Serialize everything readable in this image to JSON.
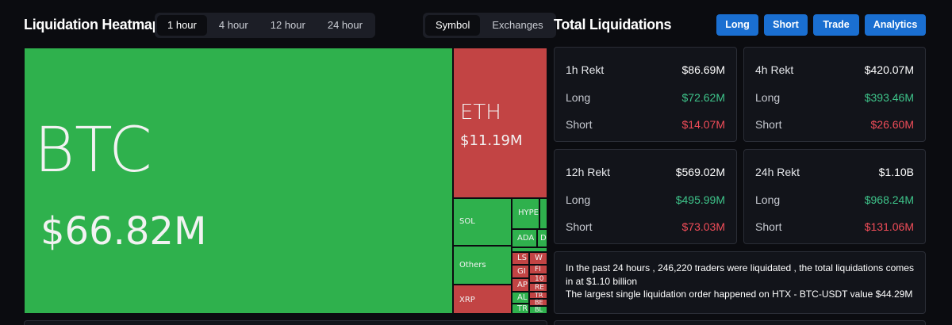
{
  "heatmap": {
    "title": "Liquidation Heatmap",
    "timeframes": [
      "1 hour",
      "4 hour",
      "12 hour",
      "24 hour"
    ],
    "active_timeframe": "1 hour",
    "views": [
      "Symbol",
      "Exchanges"
    ],
    "active_view": "Symbol",
    "tiles": {
      "btc": {
        "symbol": "BTC",
        "value": "$66.82M",
        "direction": "long"
      },
      "eth": {
        "symbol": "ETH",
        "value": "$11.19M",
        "direction": "short"
      },
      "sol": {
        "symbol": "SOL"
      },
      "others": {
        "symbol": "Others"
      },
      "xrp": {
        "symbol": "XRP"
      },
      "hype": {
        "symbol": "HYPE"
      },
      "ada": {
        "symbol": "ADA"
      },
      "d": {
        "symbol": "D"
      },
      "ls": {
        "symbol": "LS"
      },
      "w": {
        "symbol": "W"
      },
      "gi": {
        "symbol": "GI"
      },
      "fi": {
        "symbol": "FI"
      },
      "ten": {
        "symbol": "10"
      },
      "ap": {
        "symbol": "AP"
      },
      "re": {
        "symbol": "RE"
      },
      "al": {
        "symbol": "AL"
      },
      "tr1": {
        "symbol": "TR"
      },
      "be": {
        "symbol": "BE"
      },
      "tr2": {
        "symbol": "TR"
      },
      "bl": {
        "symbol": "BL"
      }
    }
  },
  "totals": {
    "title": "Total Liquidations",
    "buttons": [
      "Long",
      "Short",
      "Trade",
      "Analytics"
    ],
    "cards": [
      {
        "label": "1h Rekt",
        "total": "$86.69M",
        "long_label": "Long",
        "long": "$72.62M",
        "short_label": "Short",
        "short": "$14.07M"
      },
      {
        "label": "4h Rekt",
        "total": "$420.07M",
        "long_label": "Long",
        "long": "$393.46M",
        "short_label": "Short",
        "short": "$26.60M"
      },
      {
        "label": "12h Rekt",
        "total": "$569.02M",
        "long_label": "Long",
        "long": "$495.99M",
        "short_label": "Short",
        "short": "$73.03M"
      },
      {
        "label": "24h Rekt",
        "total": "$1.10B",
        "long_label": "Long",
        "long": "$968.24M",
        "short_label": "Short",
        "short": "$131.06M"
      }
    ],
    "summary_line1": "In the past 24 hours , 246,220 traders were liquidated , the total liquidations comes in at $1.10 billion",
    "summary_line2": "The largest single liquidation order happened on HTX - BTC-USDT value $44.29M"
  },
  "colors": {
    "long": "#2fb14d",
    "short": "#c24444",
    "accent_button": "#1a6fd1",
    "positive_text": "#3ec48a",
    "negative_text": "#f24d59"
  }
}
